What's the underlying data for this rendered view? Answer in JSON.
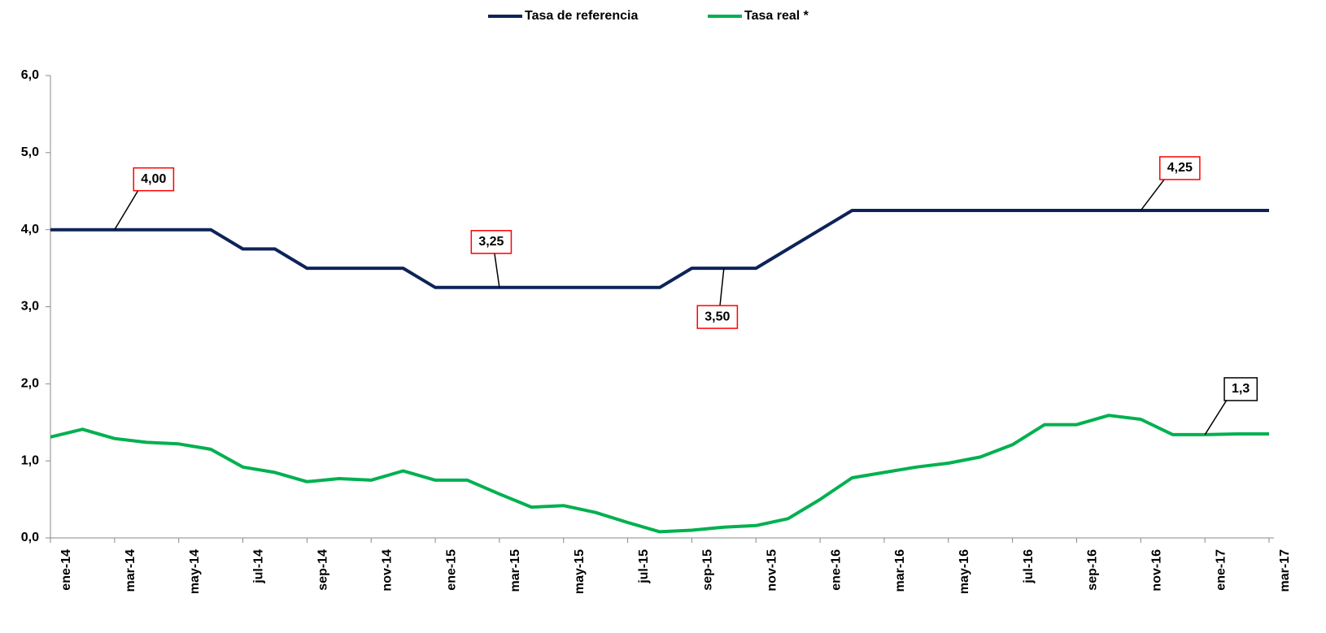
{
  "chart_data": {
    "type": "line",
    "categories": [
      "ene-14",
      null,
      "mar-14",
      null,
      "may-14",
      null,
      "jul-14",
      null,
      "sep-14",
      null,
      "nov-14",
      null,
      "ene-15",
      null,
      "mar-15",
      null,
      "may-15",
      null,
      "jul-15",
      null,
      "sep-15",
      null,
      "nov-15",
      null,
      "ene-16",
      null,
      "mar-16",
      null,
      "may-16",
      null,
      "jul-16",
      null,
      "sep-16",
      null,
      "nov-16",
      null,
      "ene-17",
      null,
      "mar-17"
    ],
    "series": [
      {
        "name": "Tasa de referencia",
        "color": "#0d2359",
        "label_border": "#ff0000",
        "values": [
          4.0,
          4.0,
          4.0,
          4.0,
          4.0,
          4.0,
          3.75,
          3.75,
          3.5,
          3.5,
          3.5,
          3.5,
          3.25,
          3.25,
          3.25,
          3.25,
          3.25,
          3.25,
          3.25,
          3.25,
          3.5,
          3.5,
          3.5,
          3.75,
          4.0,
          4.25,
          4.25,
          4.25,
          4.25,
          4.25,
          4.25,
          4.25,
          4.25,
          4.25,
          4.25,
          4.25,
          4.25,
          4.25,
          4.25
        ],
        "value_labels": [
          null,
          null,
          "4,00",
          null,
          null,
          null,
          null,
          null,
          null,
          null,
          null,
          null,
          null,
          null,
          "3,25",
          null,
          null,
          null,
          null,
          null,
          null,
          "3,50",
          null,
          null,
          null,
          null,
          null,
          null,
          null,
          null,
          null,
          null,
          null,
          null,
          "4,25",
          null,
          null,
          null,
          null
        ]
      },
      {
        "name": "Tasa real *",
        "color": "#00b050",
        "label_border": "#000000",
        "values": [
          1.31,
          1.41,
          1.29,
          1.24,
          1.22,
          1.15,
          0.92,
          0.85,
          0.73,
          0.77,
          0.75,
          0.87,
          0.75,
          0.75,
          0.57,
          0.4,
          0.42,
          0.33,
          0.2,
          0.08,
          0.1,
          0.14,
          0.16,
          0.25,
          0.5,
          0.78,
          0.85,
          0.92,
          0.97,
          1.05,
          1.21,
          1.47,
          1.47,
          1.59,
          1.54,
          1.34,
          1.34,
          1.35,
          1.35
        ],
        "value_labels": [
          null,
          null,
          null,
          null,
          null,
          null,
          null,
          null,
          null,
          null,
          null,
          null,
          null,
          null,
          null,
          null,
          null,
          null,
          null,
          null,
          null,
          null,
          null,
          null,
          null,
          null,
          null,
          null,
          null,
          null,
          null,
          null,
          null,
          null,
          null,
          null,
          "1,3",
          null,
          null
        ]
      }
    ],
    "ylim": [
      0,
      6
    ],
    "yticks": [
      {
        "value": 0,
        "label": "0,0"
      },
      {
        "value": 1,
        "label": "1,0"
      },
      {
        "value": 2,
        "label": "2,0"
      },
      {
        "value": 3,
        "label": "3,0"
      },
      {
        "value": 4,
        "label": "4,0"
      },
      {
        "value": 5,
        "label": "5,0"
      },
      {
        "value": 6,
        "label": "6,0"
      }
    ],
    "legend": "top",
    "grid": false
  }
}
